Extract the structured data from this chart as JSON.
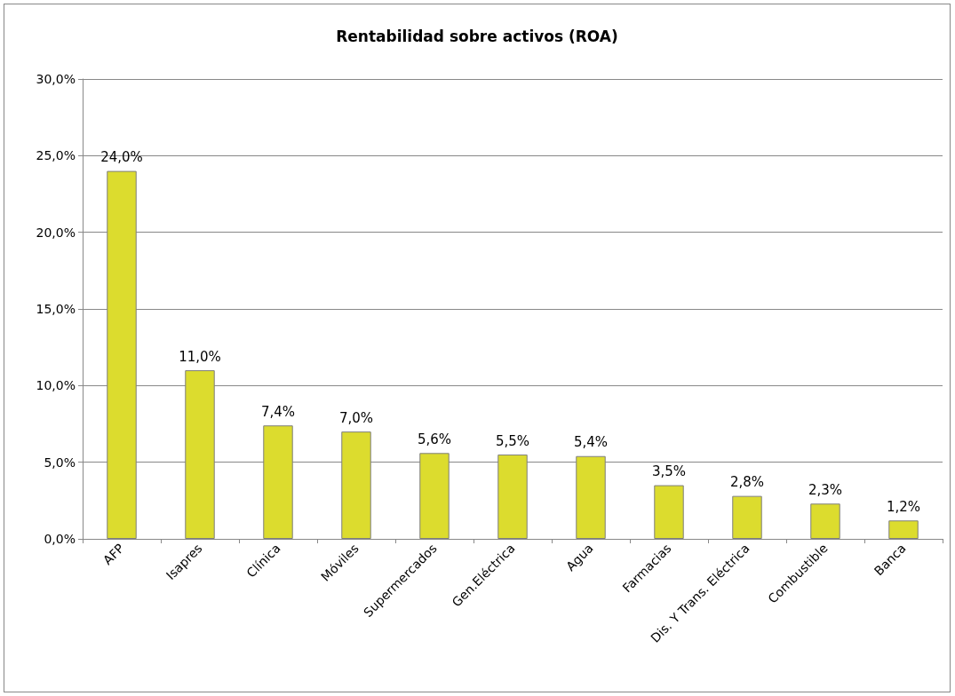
{
  "chart_data": {
    "type": "bar",
    "title": "Rentabilidad sobre activos (ROA)",
    "categories": [
      "AFP",
      "Isapres",
      "Clínica",
      "Móviles",
      "Supermercados",
      "Gen.Eléctrica",
      "Agua",
      "Farmacias",
      "Dis. Y Trans. Eléctrica",
      "Combustible",
      "Banca"
    ],
    "values": [
      24.0,
      11.0,
      7.4,
      7.0,
      5.6,
      5.5,
      5.4,
      3.5,
      2.8,
      2.3,
      1.2
    ],
    "value_labels": [
      "24,0%",
      "11,0%",
      "7,4%",
      "7,0%",
      "5,6%",
      "5,5%",
      "5,4%",
      "3,5%",
      "2,8%",
      "2,3%",
      "1,2%"
    ],
    "color": "#dcdc2e",
    "ylim": [
      0,
      30
    ],
    "yticks": [
      {
        "value": 0,
        "label": "0,0%"
      },
      {
        "value": 5,
        "label": "5,0%"
      },
      {
        "value": 10,
        "label": "10,0%"
      },
      {
        "value": 15,
        "label": "15,0%"
      },
      {
        "value": 20,
        "label": "20,0%"
      },
      {
        "value": 25,
        "label": "25,0%"
      },
      {
        "value": 30,
        "label": "30,0%"
      }
    ],
    "grid": "y"
  }
}
